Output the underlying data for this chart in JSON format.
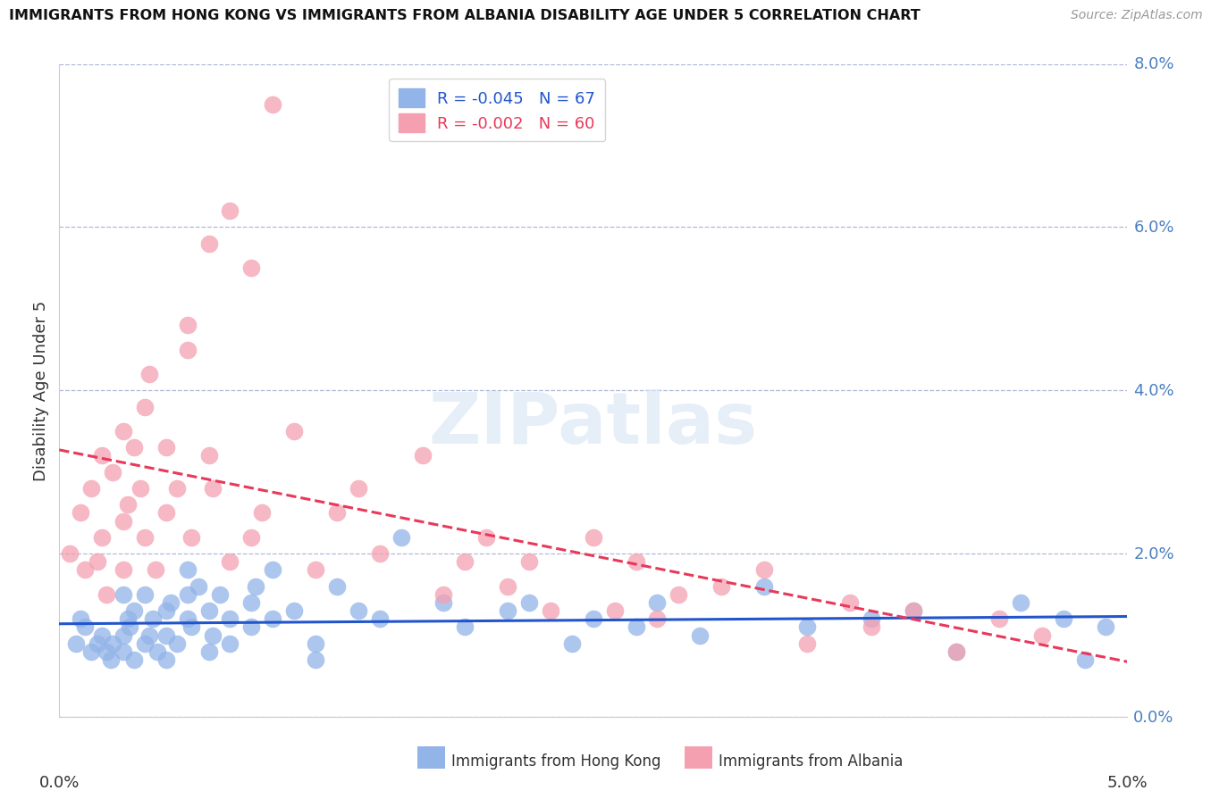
{
  "title": "IMMIGRANTS FROM HONG KONG VS IMMIGRANTS FROM ALBANIA DISABILITY AGE UNDER 5 CORRELATION CHART",
  "source": "Source: ZipAtlas.com",
  "ylabel": "Disability Age Under 5",
  "hk_R": -0.045,
  "hk_N": 67,
  "alb_R": -0.002,
  "alb_N": 60,
  "hk_color": "#92b4e8",
  "alb_color": "#f4a0b0",
  "hk_line_color": "#2255cc",
  "alb_line_color": "#e8395a",
  "watermark": "ZIPatlas",
  "xlim": [
    0,
    0.05
  ],
  "ylim": [
    0,
    0.08
  ],
  "ytick_vals": [
    0.0,
    0.02,
    0.04,
    0.06,
    0.08
  ],
  "hk_scatter_x": [
    0.001,
    0.0008,
    0.0012,
    0.0015,
    0.0018,
    0.002,
    0.0022,
    0.0024,
    0.0025,
    0.003,
    0.003,
    0.003,
    0.0032,
    0.0033,
    0.0035,
    0.0035,
    0.004,
    0.004,
    0.0042,
    0.0044,
    0.0046,
    0.005,
    0.005,
    0.005,
    0.0052,
    0.0055,
    0.006,
    0.006,
    0.006,
    0.0062,
    0.0065,
    0.007,
    0.007,
    0.0072,
    0.0075,
    0.008,
    0.008,
    0.009,
    0.009,
    0.0092,
    0.01,
    0.01,
    0.011,
    0.012,
    0.012,
    0.013,
    0.014,
    0.015,
    0.016,
    0.018,
    0.019,
    0.021,
    0.022,
    0.024,
    0.025,
    0.027,
    0.028,
    0.03,
    0.033,
    0.035,
    0.038,
    0.04,
    0.042,
    0.045,
    0.047,
    0.048,
    0.049
  ],
  "hk_scatter_y": [
    0.012,
    0.009,
    0.011,
    0.008,
    0.009,
    0.01,
    0.008,
    0.007,
    0.009,
    0.008,
    0.01,
    0.015,
    0.012,
    0.011,
    0.013,
    0.007,
    0.009,
    0.015,
    0.01,
    0.012,
    0.008,
    0.01,
    0.013,
    0.007,
    0.014,
    0.009,
    0.012,
    0.015,
    0.018,
    0.011,
    0.016,
    0.013,
    0.008,
    0.01,
    0.015,
    0.009,
    0.012,
    0.014,
    0.011,
    0.016,
    0.012,
    0.018,
    0.013,
    0.007,
    0.009,
    0.016,
    0.013,
    0.012,
    0.022,
    0.014,
    0.011,
    0.013,
    0.014,
    0.009,
    0.012,
    0.011,
    0.014,
    0.01,
    0.016,
    0.011,
    0.012,
    0.013,
    0.008,
    0.014,
    0.012,
    0.007,
    0.011
  ],
  "alb_scatter_x": [
    0.0005,
    0.001,
    0.0012,
    0.0015,
    0.0018,
    0.002,
    0.002,
    0.0022,
    0.0025,
    0.003,
    0.003,
    0.003,
    0.0032,
    0.0035,
    0.0038,
    0.004,
    0.004,
    0.0042,
    0.0045,
    0.005,
    0.005,
    0.0055,
    0.006,
    0.006,
    0.0062,
    0.007,
    0.007,
    0.0072,
    0.008,
    0.008,
    0.009,
    0.009,
    0.0095,
    0.01,
    0.011,
    0.012,
    0.013,
    0.014,
    0.015,
    0.017,
    0.018,
    0.019,
    0.02,
    0.021,
    0.022,
    0.023,
    0.025,
    0.026,
    0.027,
    0.028,
    0.029,
    0.031,
    0.033,
    0.035,
    0.037,
    0.038,
    0.04,
    0.042,
    0.044,
    0.046
  ],
  "alb_scatter_y": [
    0.02,
    0.025,
    0.018,
    0.028,
    0.019,
    0.022,
    0.032,
    0.015,
    0.03,
    0.024,
    0.018,
    0.035,
    0.026,
    0.033,
    0.028,
    0.038,
    0.022,
    0.042,
    0.018,
    0.025,
    0.033,
    0.028,
    0.045,
    0.048,
    0.022,
    0.058,
    0.032,
    0.028,
    0.019,
    0.062,
    0.055,
    0.022,
    0.025,
    0.075,
    0.035,
    0.018,
    0.025,
    0.028,
    0.02,
    0.032,
    0.015,
    0.019,
    0.022,
    0.016,
    0.019,
    0.013,
    0.022,
    0.013,
    0.019,
    0.012,
    0.015,
    0.016,
    0.018,
    0.009,
    0.014,
    0.011,
    0.013,
    0.008,
    0.012,
    0.01
  ]
}
